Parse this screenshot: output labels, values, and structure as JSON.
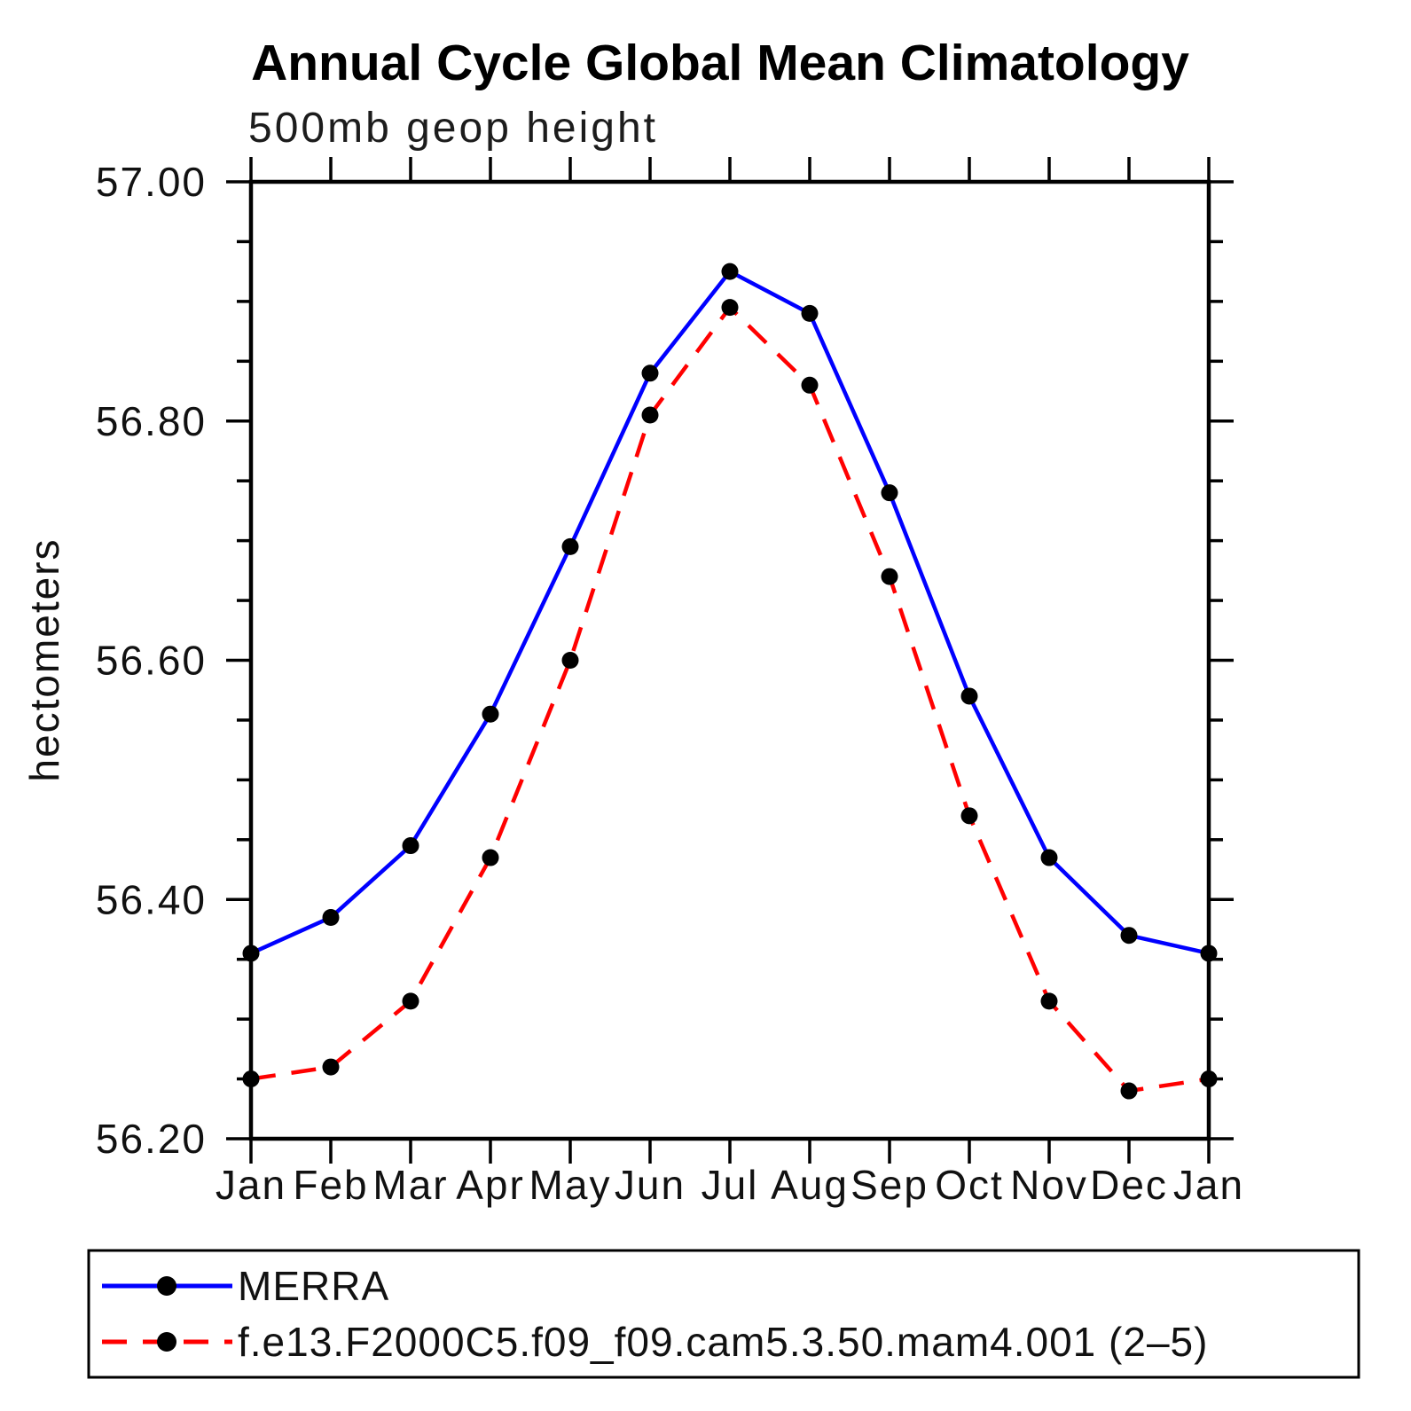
{
  "page": {
    "background": "#ffffff"
  },
  "chart_data": {
    "type": "line",
    "title": "Annual Cycle Global Mean Climatology",
    "subtitle": "500mb geop height",
    "ylabel": "hectometers",
    "x_categories": [
      "Jan",
      "Feb",
      "Mar",
      "Apr",
      "May",
      "Jun",
      "Jul",
      "Aug",
      "Sep",
      "Oct",
      "Nov",
      "Dec",
      "Jan"
    ],
    "ylim": [
      56.2,
      57.0
    ],
    "y_major_ticks": [
      57.0,
      56.8,
      56.6,
      56.4,
      56.2
    ],
    "y_tick_labels": [
      "57.00",
      "56.80",
      "56.60",
      "56.40",
      "56.20"
    ],
    "y_minor_step": 0.05,
    "grid": false,
    "legend_position": "bottom-left-box",
    "series": [
      {
        "name": "MERRA",
        "color": "#0000ff",
        "line_style": "solid",
        "marker": "filled-circle",
        "marker_color": "#000000",
        "values": [
          56.355,
          56.385,
          56.445,
          56.555,
          56.695,
          56.84,
          56.925,
          56.89,
          56.74,
          56.57,
          56.435,
          56.37,
          56.355
        ]
      },
      {
        "name": "f.e13.F2000C5.f09_f09.cam5.3.50.mam4.001 (2–5)",
        "color": "#ff0000",
        "line_style": "dashed",
        "marker": "filled-circle",
        "marker_color": "#000000",
        "values": [
          56.25,
          56.26,
          56.315,
          56.435,
          56.6,
          56.805,
          56.895,
          56.83,
          56.67,
          56.47,
          56.315,
          56.24,
          56.25
        ]
      }
    ]
  },
  "colors": {
    "axis": "#000000",
    "text": "#000000",
    "series_merra": "#0000ff",
    "series_model": "#ff0000",
    "marker": "#000000"
  }
}
